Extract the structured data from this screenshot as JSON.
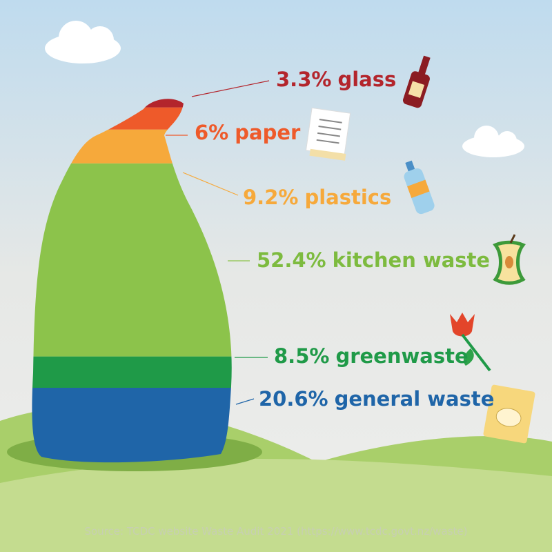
{
  "chart_data": {
    "type": "bag",
    "categories": [
      "glass",
      "paper",
      "plastics",
      "kitchen waste",
      "greenwaste",
      "general waste"
    ],
    "values": [
      3.3,
      6,
      9.2,
      52.4,
      8.5,
      20.6
    ],
    "value_labels": [
      "3.3%",
      "6%",
      "9.2%",
      "52.4%",
      "8.5%",
      "20.6%"
    ],
    "colors": [
      "#b3252c",
      "#ee5a2a",
      "#f6a93b",
      "#8cc34b",
      "#1f9a48",
      "#1f65a8"
    ],
    "source": "Source: TCDC website Waste Audit 2021 (https://www.tcdc.govt.nz/waste)"
  }
}
